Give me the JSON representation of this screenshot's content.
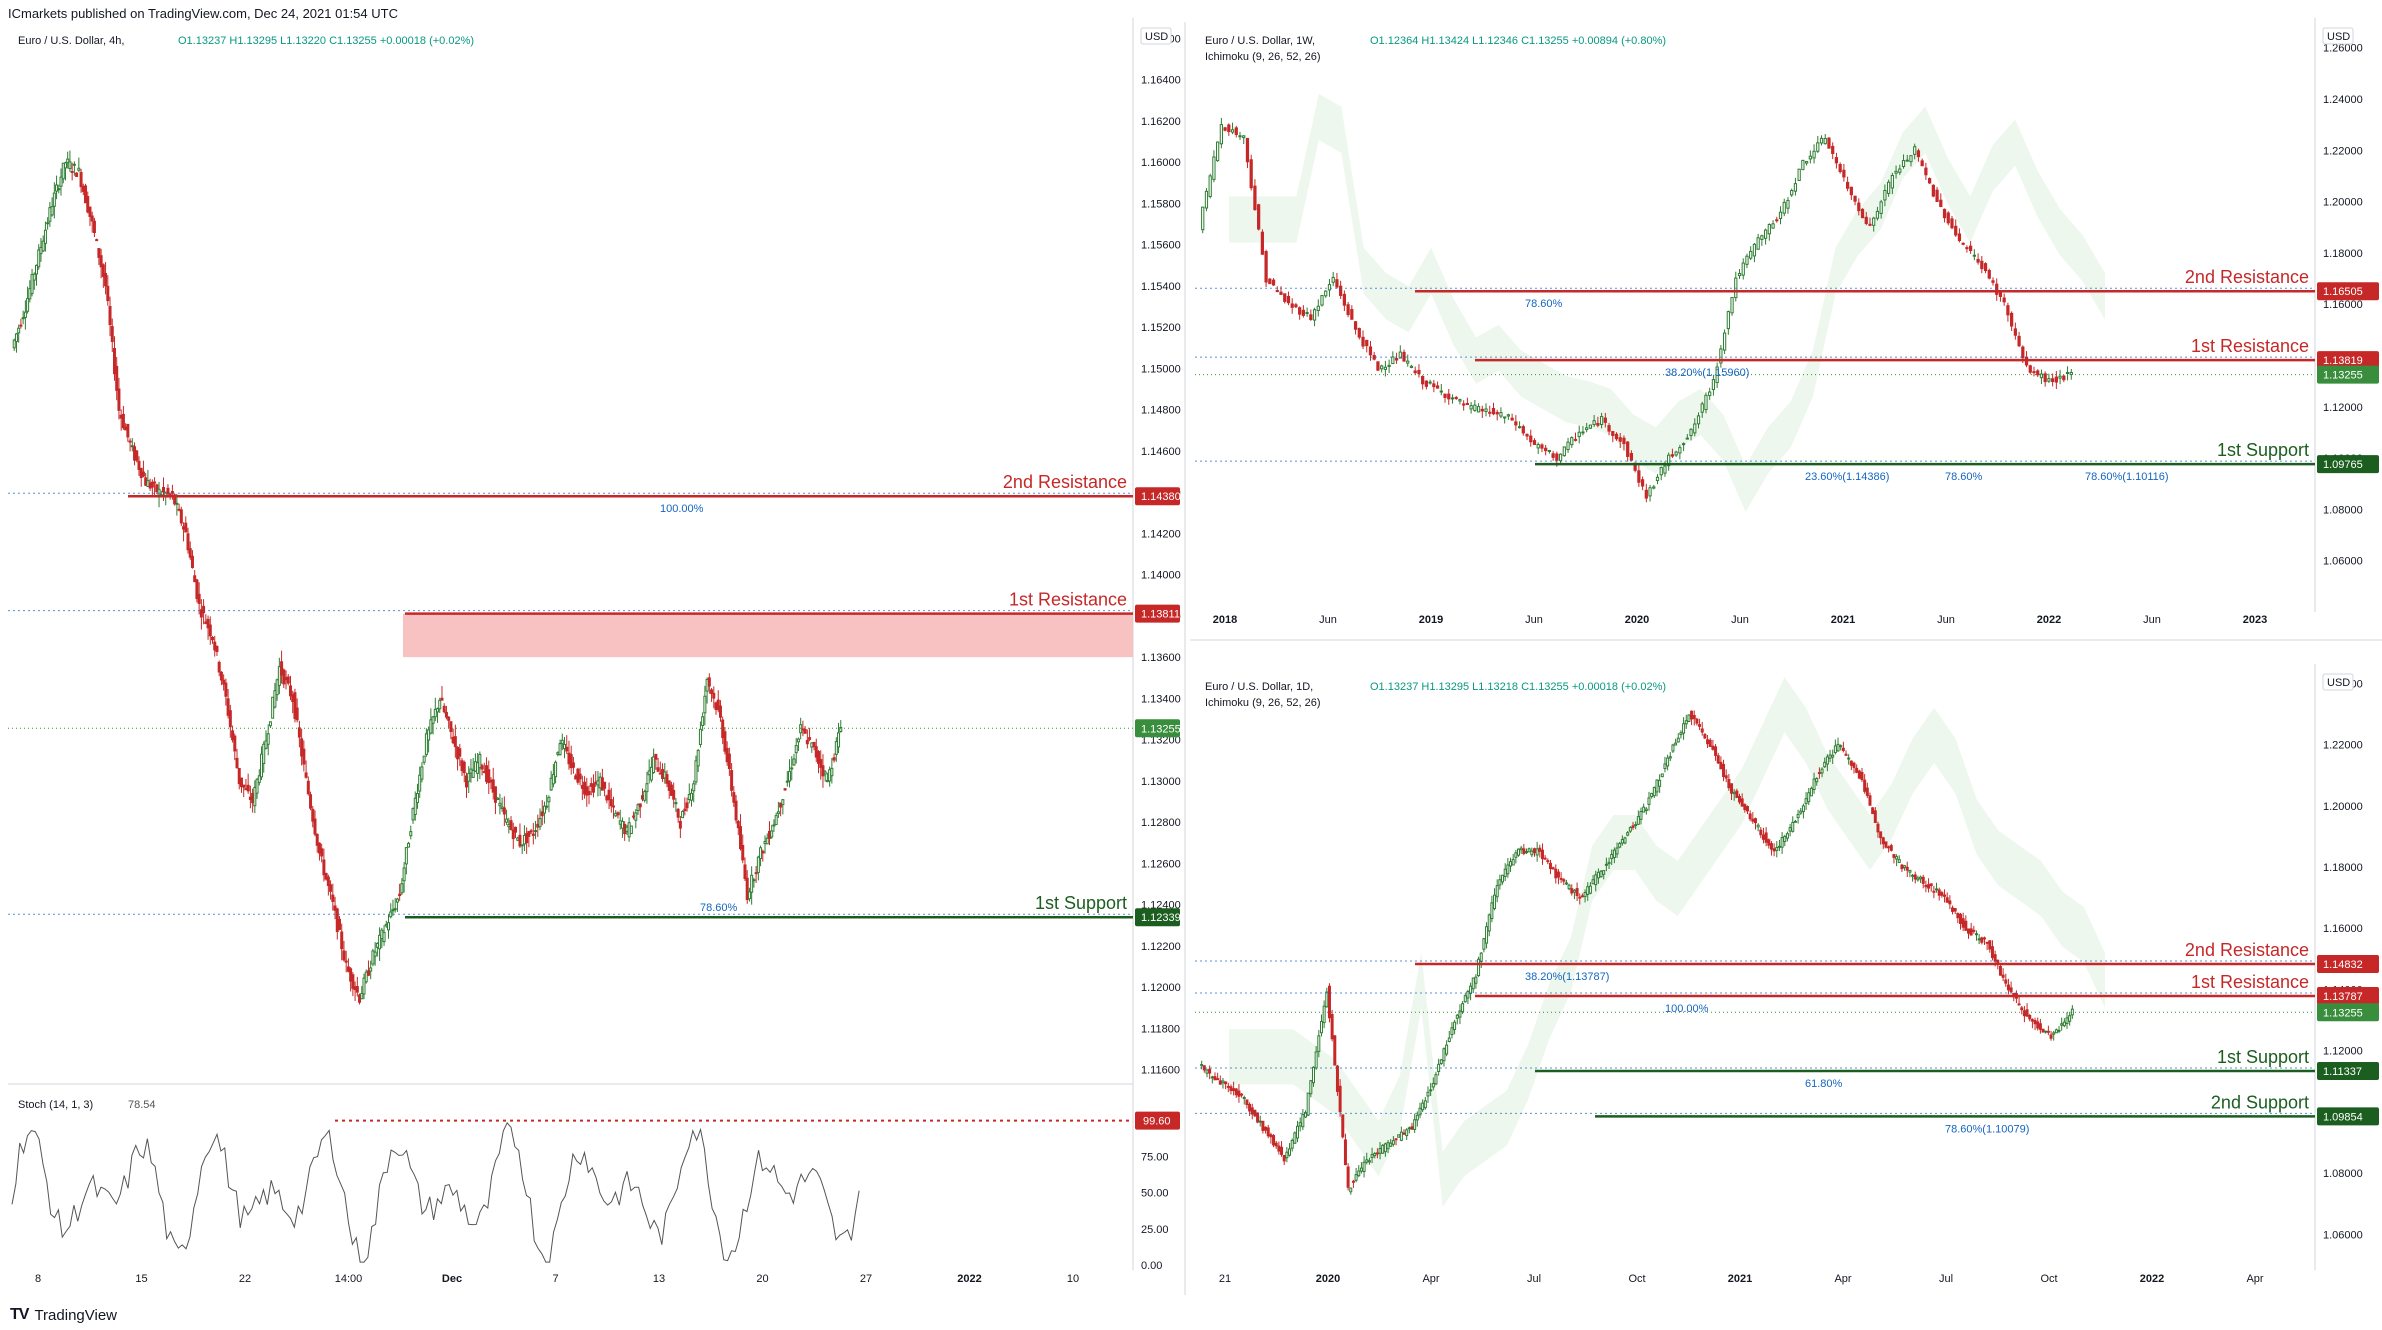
{
  "header": {
    "publisher": "ICmarkets published on TradingView.com, Dec 24, 2021 01:54 UTC"
  },
  "footer": {
    "logo": "𝟣𝟩",
    "brand": "TradingView"
  },
  "colors": {
    "up": "#26a69a",
    "up_fill": "#1b5e20",
    "down": "#d32f2f",
    "resistance": "#c62828",
    "support": "#1b5e20",
    "zone": "#f8bbbb",
    "grid": "#f0f3fa",
    "axis": "#131722",
    "price_tag": "#388e3c",
    "dotted_blue": "#1565c0",
    "dotted_red": "#c62828",
    "kumo_bull": "#e8f5e9",
    "kumo_bear": "#ffebee"
  },
  "panels": [
    {
      "id": "p4h",
      "legend": "Euro / U.S. Dollar, 4h,",
      "ohlc": {
        "O": "1.13237",
        "H": "1.13295",
        "L": "1.13220",
        "C": "1.13255",
        "chg": "+0.00018 (+0.02%)"
      },
      "indicator_label": "",
      "currency": "USD",
      "y_ticks": [
        "1.16600",
        "1.16400",
        "1.16200",
        "1.16000",
        "1.15800",
        "1.15600",
        "1.15400",
        "1.15200",
        "1.15000",
        "1.14800",
        "1.14600",
        "1.14400",
        "1.14200",
        "1.14000",
        "1.13800",
        "1.13600",
        "1.13400",
        "1.13200",
        "1.13000",
        "1.12800",
        "1.12600",
        "1.12400",
        "1.12200",
        "1.12000",
        "1.11800",
        "1.11600"
      ],
      "x_ticks": [
        "8",
        "15",
        "22",
        "14:00",
        "Dec",
        "7",
        "13",
        "20",
        "27",
        "2022",
        "10"
      ],
      "levels": [
        {
          "name": "2nd Resistance",
          "price": "1.14380",
          "kind": "res"
        },
        {
          "name": "1st Resistance",
          "price": "1.13811",
          "kind": "res"
        },
        {
          "name": "1st Support",
          "price": "1.12339",
          "kind": "sup"
        }
      ],
      "last_price": "1.13255",
      "fib_labels": [
        "100.00%",
        "78.60%"
      ],
      "stoch": {
        "label": "Stoch (14, 1, 3)",
        "value": "78.54",
        "level_tag": "99.60",
        "ticks": [
          "75.00",
          "50.00",
          "25.00",
          "0.00"
        ]
      }
    },
    {
      "id": "p1w",
      "legend": "Euro / U.S. Dollar, 1W,",
      "ohlc": {
        "O": "1.12364",
        "H": "1.13424",
        "L": "1.12346",
        "C": "1.13255",
        "chg": "+0.00894 (+0.80%)"
      },
      "indicator_label": "Ichimoku (9, 26, 52, 26)",
      "currency": "USD",
      "y_ticks": [
        "1.26000",
        "1.24000",
        "1.22000",
        "1.20000",
        "1.18000",
        "1.16000",
        "1.14000",
        "1.12000",
        "1.10000",
        "1.08000",
        "1.06000"
      ],
      "x_ticks": [
        "2018",
        "Jun",
        "2019",
        "Jun",
        "2020",
        "Jun",
        "2021",
        "Jun",
        "2022",
        "Jun",
        "2023"
      ],
      "levels": [
        {
          "name": "2nd Resistance",
          "price": "1.16505",
          "kind": "res"
        },
        {
          "name": "1st Resistance",
          "price": "1.13819",
          "kind": "res"
        },
        {
          "name": "1st Support",
          "price": "1.09765",
          "kind": "sup"
        }
      ],
      "last_price": "1.13255",
      "fib_labels": [
        "78.60%",
        "38.20%(1.15960)",
        "23.60%(1.14386)",
        "78.60%",
        "78.60%(1.10116)"
      ],
      "stoch": null
    },
    {
      "id": "p1d",
      "legend": "Euro / U.S. Dollar, 1D,",
      "ohlc": {
        "O": "1.13237",
        "H": "1.13295",
        "L": "1.13218",
        "C": "1.13255",
        "chg": "+0.00018 (+0.02%)"
      },
      "indicator_label": "Ichimoku (9, 26, 52, 26)",
      "currency": "USD",
      "y_ticks": [
        "1.24000",
        "1.22000",
        "1.20000",
        "1.18000",
        "1.16000",
        "1.14000",
        "1.12000",
        "1.10000",
        "1.08000",
        "1.06000"
      ],
      "x_ticks": [
        "21",
        "2020",
        "Apr",
        "Jul",
        "Oct",
        "2021",
        "Apr",
        "Jul",
        "Oct",
        "2022",
        "Apr"
      ],
      "levels": [
        {
          "name": "2nd Resistance",
          "price": "1.14832",
          "kind": "res"
        },
        {
          "name": "1st Resistance",
          "price": "1.13787",
          "kind": "res"
        },
        {
          "name": "1st Support",
          "price": "1.11337",
          "kind": "sup"
        },
        {
          "name": "2nd Support",
          "price": "1.09854",
          "kind": "sup"
        }
      ],
      "last_price": "1.13255",
      "fib_labels": [
        "38.20%(1.13787)",
        "100.00%",
        "61.80%",
        "78.60%(1.10079)"
      ],
      "stoch": null
    }
  ],
  "chart_data": [
    {
      "type": "candlestick",
      "title": "Euro / U.S. Dollar, 4h",
      "ylim": [
        1.1155,
        1.1665
      ],
      "series": [
        {
          "name": "EURUSD 4h",
          "close_path": [
            1.151,
            1.153,
            1.1555,
            1.158,
            1.16,
            1.1595,
            1.157,
            1.154,
            1.148,
            1.146,
            1.1445,
            1.144,
            1.1438,
            1.142,
            1.1385,
            1.137,
            1.134,
            1.13,
            1.129,
            1.132,
            1.1355,
            1.134,
            1.13,
            1.1265,
            1.124,
            1.121,
            1.1195,
            1.1215,
            1.123,
            1.1245,
            1.1285,
            1.132,
            1.134,
            1.132,
            1.13,
            1.131,
            1.1295,
            1.128,
            1.127,
            1.1275,
            1.129,
            1.132,
            1.1305,
            1.1295,
            1.13,
            1.1285,
            1.1275,
            1.129,
            1.131,
            1.13,
            1.128,
            1.13,
            1.135,
            1.133,
            1.129,
            1.1245,
            1.1265,
            1.128,
            1.13,
            1.1325,
            1.1315,
            1.13,
            1.1326
          ]
        }
      ],
      "levels": [
        1.1438,
        1.13811,
        1.12339
      ]
    },
    {
      "type": "candlestick",
      "title": "Euro / U.S. Dollar, 1W",
      "ylim": [
        1.04,
        1.27
      ],
      "series": [
        {
          "name": "EURUSD 1W",
          "close_path": [
            1.19,
            1.23,
            1.225,
            1.17,
            1.16,
            1.155,
            1.17,
            1.15,
            1.135,
            1.14,
            1.13,
            1.125,
            1.12,
            1.118,
            1.115,
            1.105,
            1.1,
            1.11,
            1.115,
            1.105,
            1.085,
            1.1,
            1.11,
            1.13,
            1.17,
            1.185,
            1.195,
            1.215,
            1.225,
            1.205,
            1.19,
            1.21,
            1.22,
            1.2,
            1.185,
            1.175,
            1.16,
            1.135,
            1.13,
            1.1325
          ]
        }
      ],
      "levels": [
        1.16505,
        1.13819,
        1.09765
      ]
    },
    {
      "type": "candlestick",
      "title": "Euro / U.S. Dollar, 1D",
      "ylim": [
        1.05,
        1.245
      ],
      "series": [
        {
          "name": "EURUSD 1D",
          "close_path": [
            1.115,
            1.11,
            1.105,
            1.095,
            1.085,
            1.1,
            1.14,
            1.075,
            1.085,
            1.09,
            1.095,
            1.11,
            1.13,
            1.145,
            1.175,
            1.185,
            1.185,
            1.175,
            1.17,
            1.18,
            1.19,
            1.2,
            1.215,
            1.23,
            1.22,
            1.205,
            1.195,
            1.185,
            1.195,
            1.21,
            1.22,
            1.21,
            1.19,
            1.18,
            1.175,
            1.17,
            1.16,
            1.155,
            1.14,
            1.13,
            1.125,
            1.1325
          ]
        }
      ],
      "levels": [
        1.14832,
        1.13787,
        1.11337,
        1.09854
      ]
    }
  ]
}
